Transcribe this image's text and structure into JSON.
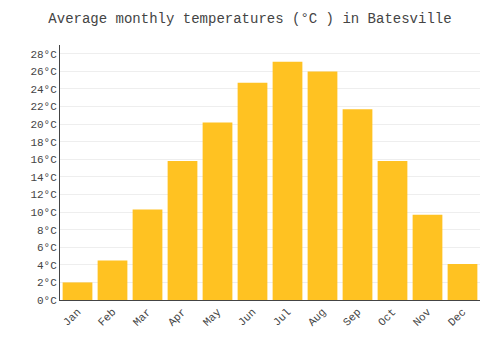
{
  "chart_data": {
    "type": "bar",
    "title": "Average monthly temperatures (°C ) in Batesville",
    "categories": [
      "Jan",
      "Feb",
      "Mar",
      "Apr",
      "May",
      "Jun",
      "Jul",
      "Aug",
      "Sep",
      "Oct",
      "Nov",
      "Dec"
    ],
    "values": [
      2.0,
      4.5,
      10.3,
      15.8,
      20.2,
      24.7,
      27.1,
      26.0,
      21.7,
      15.8,
      9.7,
      4.1
    ],
    "color": "#FFC222",
    "ylim": [
      0,
      29
    ],
    "yticks": [
      {
        "value": 0,
        "label": "0°C"
      },
      {
        "value": 2,
        "label": "2°C"
      },
      {
        "value": 4,
        "label": "4°C"
      },
      {
        "value": 6,
        "label": "6°C"
      },
      {
        "value": 8,
        "label": "8°C"
      },
      {
        "value": 10,
        "label": "10°C"
      },
      {
        "value": 12,
        "label": "12°C"
      },
      {
        "value": 14,
        "label": "14°C"
      },
      {
        "value": 16,
        "label": "16°C"
      },
      {
        "value": 18,
        "label": "18°C"
      },
      {
        "value": 20,
        "label": "20°C"
      },
      {
        "value": 22,
        "label": "22°C"
      },
      {
        "value": 24,
        "label": "24°C"
      },
      {
        "value": 26,
        "label": "26°C"
      },
      {
        "value": 28,
        "label": "28°C"
      }
    ],
    "grid": true
  }
}
